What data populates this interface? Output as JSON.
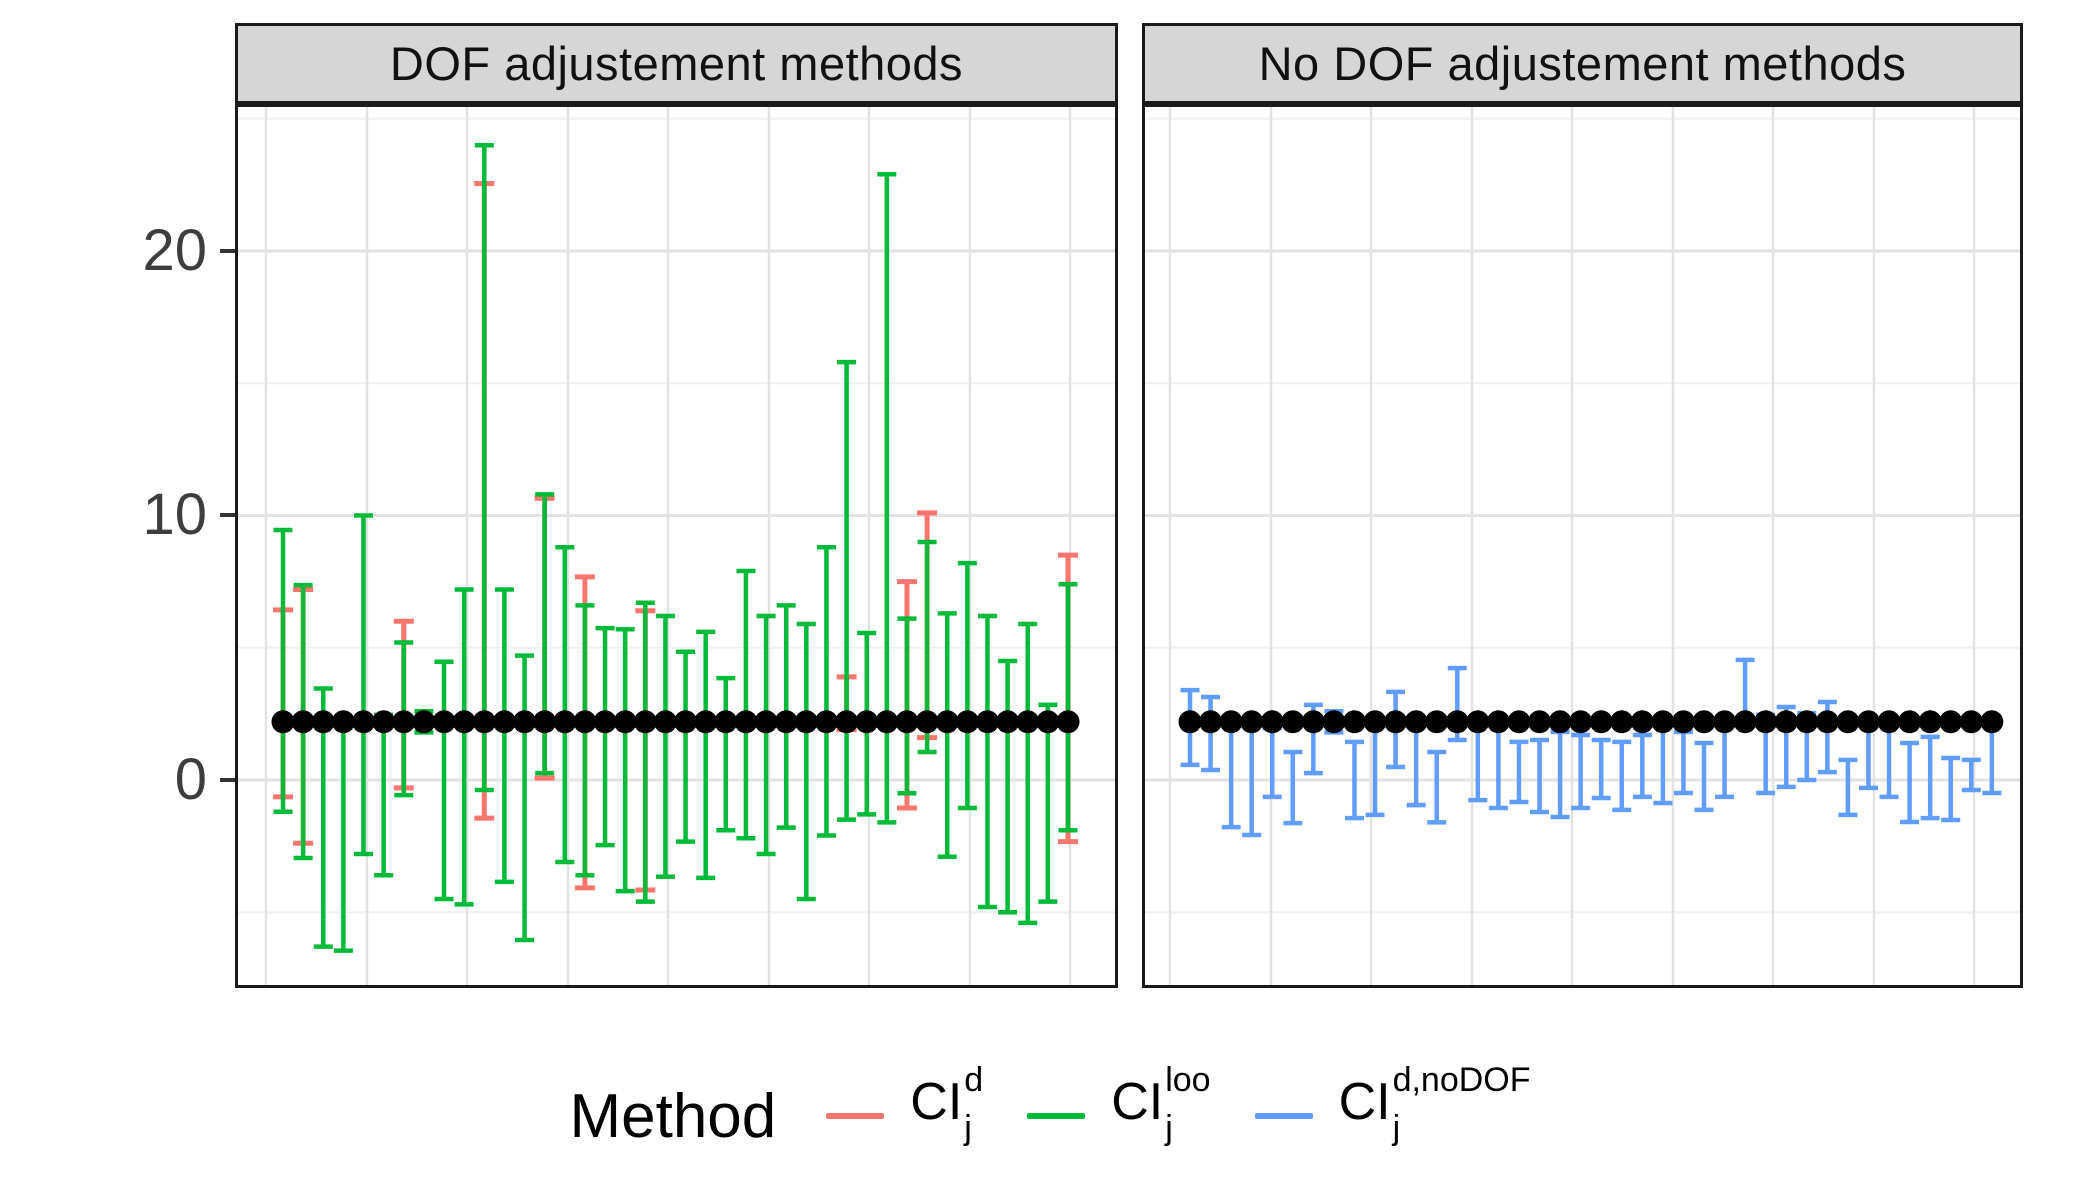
{
  "chart_data": {
    "type": "errorbar",
    "description": "Faceted confidence-interval comparison plot; black dots are point estimates (~2.2) with vertical CI error bars per coefficient index",
    "y_axis": {
      "tick_labels": [
        "0",
        "10",
        "20"
      ],
      "tick_values": [
        0,
        10,
        20
      ],
      "minor_grid_values": [
        -5,
        5,
        15,
        25
      ],
      "range": [
        -7.9,
        25.6
      ],
      "grid": "on"
    },
    "point_estimate": 2.2,
    "colors": {
      "ci_d": "#F8766D",
      "ci_loo": "#00BA38",
      "ci_d_nodof": "#619CFF",
      "point": "#000000",
      "strip_bg": "#D6D6D6",
      "grid_major": "#E2E2E2",
      "grid_minor": "#F0F0F0"
    },
    "legend": {
      "title": "Method",
      "position": "bottom",
      "items": [
        {
          "base": "CI",
          "sub": "j",
          "sup": "d",
          "color": "#F8766D"
        },
        {
          "base": "CI",
          "sub": "j",
          "sup": "loo",
          "color": "#00BA38"
        },
        {
          "base": "CI",
          "sub": "j",
          "sup": "d,noDOF",
          "color": "#619CFF"
        }
      ]
    },
    "facets": [
      {
        "title": "DOF adjustement methods",
        "series": [
          "ci_loo",
          "ci_d"
        ],
        "bars": [
          {
            "loo": [
              -1.2,
              9.45
            ],
            "d": [
              -0.64,
              6.43
            ]
          },
          {
            "loo": [
              -2.95,
              7.37
            ],
            "d": [
              -2.39,
              7.2
            ]
          },
          {
            "loo": [
              -6.3,
              3.46
            ],
            "d": null
          },
          {
            "loo": [
              -6.45,
              2.1
            ],
            "d": null
          },
          {
            "loo": [
              -2.8,
              10.0
            ],
            "d": null
          },
          {
            "loo": [
              -3.6,
              2.46
            ],
            "d": null
          },
          {
            "loo": [
              -0.57,
              5.2
            ],
            "d": [
              -0.3,
              6.0
            ]
          },
          {
            "loo": [
              1.8,
              2.6
            ],
            "d": null
          },
          {
            "loo": [
              -4.5,
              4.47
            ],
            "d": null
          },
          {
            "loo": [
              -4.7,
              7.2
            ],
            "d": null
          },
          {
            "loo": [
              -0.38,
              24.0
            ],
            "d": [
              -1.44,
              22.55
            ]
          },
          {
            "loo": [
              -3.85,
              7.2
            ],
            "d": null
          },
          {
            "loo": [
              -6.05,
              4.7
            ],
            "d": null
          },
          {
            "loo": [
              0.26,
              10.8
            ],
            "d": [
              0.07,
              10.65
            ]
          },
          {
            "loo": [
              -3.1,
              8.8
            ],
            "d": null
          },
          {
            "loo": [
              -3.6,
              6.6
            ],
            "d": [
              -4.08,
              7.68
            ]
          },
          {
            "loo": [
              -2.46,
              5.74
            ],
            "d": null
          },
          {
            "loo": [
              -4.2,
              5.7
            ],
            "d": null
          },
          {
            "loo": [
              -4.6,
              6.7
            ],
            "d": [
              -4.16,
              6.4
            ]
          },
          {
            "loo": [
              -3.66,
              6.2
            ],
            "d": null
          },
          {
            "loo": [
              -2.33,
              4.85
            ],
            "d": null
          },
          {
            "loo": [
              -3.7,
              5.6
            ],
            "d": null
          },
          {
            "loo": [
              -1.9,
              3.85
            ],
            "d": null
          },
          {
            "loo": [
              -2.2,
              7.9
            ],
            "d": null
          },
          {
            "loo": [
              -2.8,
              6.2
            ],
            "d": null
          },
          {
            "loo": [
              -1.8,
              6.6
            ],
            "d": null
          },
          {
            "loo": [
              -4.5,
              5.9
            ],
            "d": null
          },
          {
            "loo": [
              -2.1,
              8.8
            ],
            "d": null
          },
          {
            "loo": [
              -1.5,
              15.8
            ],
            "d": [
              1.9,
              3.9
            ]
          },
          {
            "loo": [
              -1.3,
              5.56
            ],
            "d": null
          },
          {
            "loo": [
              -1.6,
              22.9
            ],
            "d": null
          },
          {
            "loo": [
              -0.5,
              6.1
            ],
            "d": [
              -1.06,
              7.5
            ]
          },
          {
            "loo": [
              1.06,
              9.0
            ],
            "d": [
              1.6,
              10.1
            ]
          },
          {
            "loo": [
              -2.9,
              6.3
            ],
            "d": null
          },
          {
            "loo": [
              -1.06,
              8.2
            ],
            "d": null
          },
          {
            "loo": [
              -4.8,
              6.2
            ],
            "d": null
          },
          {
            "loo": [
              -5.0,
              4.5
            ],
            "d": null
          },
          {
            "loo": [
              -5.4,
              5.9
            ],
            "d": null
          },
          {
            "loo": [
              -4.6,
              2.84
            ],
            "d": null
          },
          {
            "loo": [
              -1.9,
              7.4
            ],
            "d": [
              -2.33,
              8.5
            ]
          }
        ]
      },
      {
        "title": "No DOF adjustement methods",
        "series": [
          "ci_d_nodof"
        ],
        "bars": [
          {
            "nodof": [
              0.57,
              3.4
            ]
          },
          {
            "nodof": [
              0.38,
              3.14
            ]
          },
          {
            "nodof": [
              -1.78,
              2.2
            ]
          },
          {
            "nodof": [
              -2.08,
              2.2
            ]
          },
          {
            "nodof": [
              -0.64,
              1.97
            ]
          },
          {
            "nodof": [
              -1.63,
              1.06
            ]
          },
          {
            "nodof": [
              0.26,
              2.84
            ]
          },
          {
            "nodof": [
              1.8,
              2.6
            ]
          },
          {
            "nodof": [
              -1.44,
              1.44
            ]
          },
          {
            "nodof": [
              -1.32,
              2.2
            ]
          },
          {
            "nodof": [
              0.49,
              3.33
            ]
          },
          {
            "nodof": [
              -0.95,
              2.2
            ]
          },
          {
            "nodof": [
              -1.6,
              1.06
            ]
          },
          {
            "nodof": [
              1.51,
              4.23
            ]
          },
          {
            "nodof": [
              -0.76,
              2.1
            ]
          },
          {
            "nodof": [
              -1.06,
              2.2
            ]
          },
          {
            "nodof": [
              -0.83,
              1.44
            ]
          },
          {
            "nodof": [
              -1.21,
              1.51
            ]
          },
          {
            "nodof": [
              -1.4,
              1.82
            ]
          },
          {
            "nodof": [
              -1.06,
              1.7
            ]
          },
          {
            "nodof": [
              -0.68,
              1.51
            ]
          },
          {
            "nodof": [
              -1.13,
              1.44
            ]
          },
          {
            "nodof": [
              -0.64,
              1.7
            ]
          },
          {
            "nodof": [
              -0.87,
              2.08
            ]
          },
          {
            "nodof": [
              -0.49,
              1.82
            ]
          },
          {
            "nodof": [
              -1.13,
              1.4
            ]
          },
          {
            "nodof": [
              -0.64,
              2.2
            ]
          },
          {
            "nodof": [
              2.08,
              4.54
            ]
          },
          {
            "nodof": [
              -0.49,
              2.46
            ]
          },
          {
            "nodof": [
              -0.26,
              2.76
            ]
          },
          {
            "nodof": [
              0.0,
              2.53
            ]
          },
          {
            "nodof": [
              0.3,
              2.95
            ]
          },
          {
            "nodof": [
              -1.32,
              0.76
            ]
          },
          {
            "nodof": [
              -0.3,
              2.1
            ]
          },
          {
            "nodof": [
              -0.64,
              2.1
            ]
          },
          {
            "nodof": [
              -1.59,
              1.4
            ]
          },
          {
            "nodof": [
              -1.44,
              1.63
            ]
          },
          {
            "nodof": [
              -1.51,
              0.83
            ]
          },
          {
            "nodof": [
              -0.38,
              0.76
            ]
          },
          {
            "nodof": [
              -0.49,
              2.2
            ]
          }
        ]
      }
    ]
  }
}
